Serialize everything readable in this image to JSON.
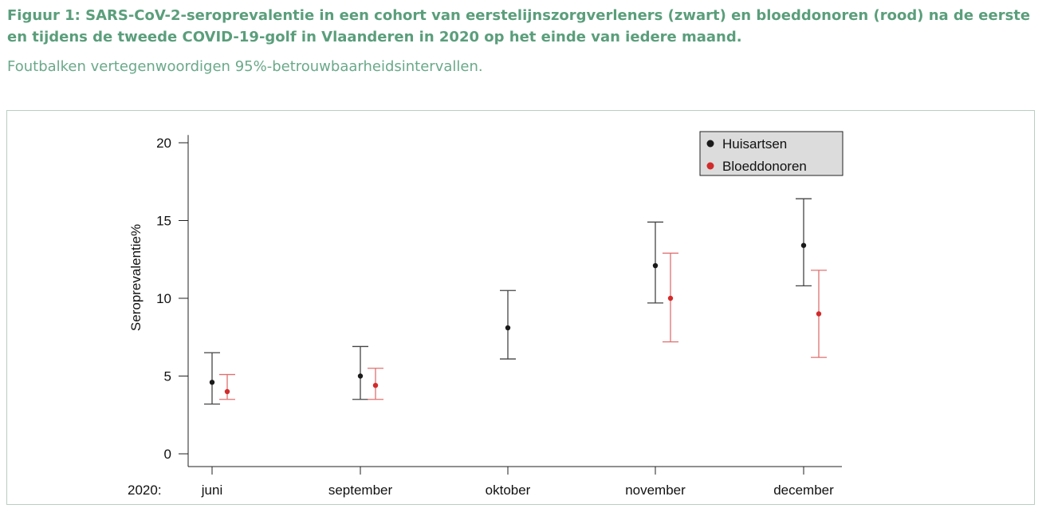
{
  "caption": {
    "title": "Figuur 1: SARS-CoV-2-seroprevalentie in een cohort van eerstelijnszorgverleners (zwart) en bloeddonoren (rood) na de eerste en tijdens de tweede COVID-19-golf in Vlaanderen in 2020 op het einde van iedere maand.",
    "subtitle": "Foutbalken vertegenwoordigen 95%-betrouwbaarheidsintervallen."
  },
  "colors": {
    "huisartsen": "#1a1a1a",
    "bloeddonoren": "#d22b2b",
    "huisartsen_bar": "#444444",
    "bloeddonoren_bar": "#e07070"
  },
  "chart_data": {
    "type": "scatter",
    "ylabel": "Seroprevalentie%",
    "x_prefix": "2020:",
    "categories": [
      "juni",
      "september",
      "oktober",
      "november",
      "december"
    ],
    "yticks": [
      0,
      5,
      10,
      15,
      20
    ],
    "ylim": [
      0,
      20.5
    ],
    "legend": {
      "position": "top-right",
      "items": [
        "Huisartsen",
        "Bloeddonoren"
      ]
    },
    "grid": false,
    "series": [
      {
        "name": "Huisartsen",
        "values": [
          4.6,
          5.0,
          8.1,
          12.1,
          13.4
        ],
        "lower": [
          3.2,
          3.5,
          6.1,
          9.7,
          10.8
        ],
        "upper": [
          6.5,
          6.9,
          10.5,
          14.9,
          16.4
        ]
      },
      {
        "name": "Bloeddonoren",
        "values": [
          4.0,
          4.4,
          null,
          10.0,
          9.0
        ],
        "lower": [
          3.5,
          3.5,
          null,
          7.2,
          6.2
        ],
        "upper": [
          5.1,
          5.5,
          null,
          12.9,
          11.8
        ]
      }
    ]
  }
}
